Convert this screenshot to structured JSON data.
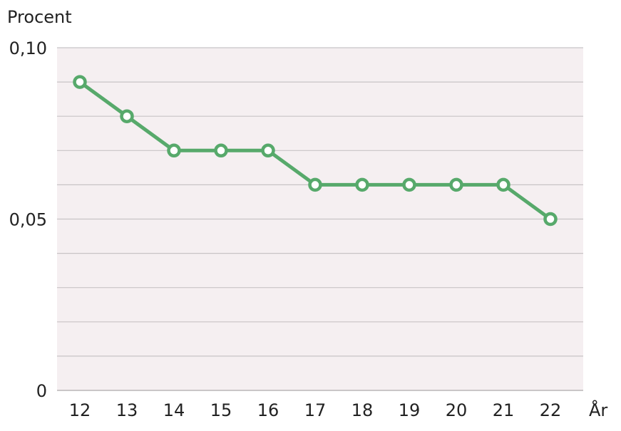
{
  "chart_data": {
    "type": "line",
    "ylabel": "Procent",
    "xlabel": "År",
    "x": [
      "12",
      "13",
      "14",
      "15",
      "16",
      "17",
      "18",
      "19",
      "20",
      "21",
      "22"
    ],
    "values": [
      0.09,
      0.08,
      0.07,
      0.07,
      0.07,
      0.06,
      0.06,
      0.06,
      0.06,
      0.06,
      0.05
    ],
    "ylim": [
      0,
      0.1
    ],
    "yticks": [
      0,
      0.05,
      0.1
    ],
    "ytick_labels": [
      "0",
      "0,05",
      "0,10"
    ],
    "grid_step": 0.01,
    "grid": true,
    "colors": {
      "line": "#57a96b",
      "plot_bg": "#f5eff1",
      "grid": "#c8c4c6"
    }
  }
}
